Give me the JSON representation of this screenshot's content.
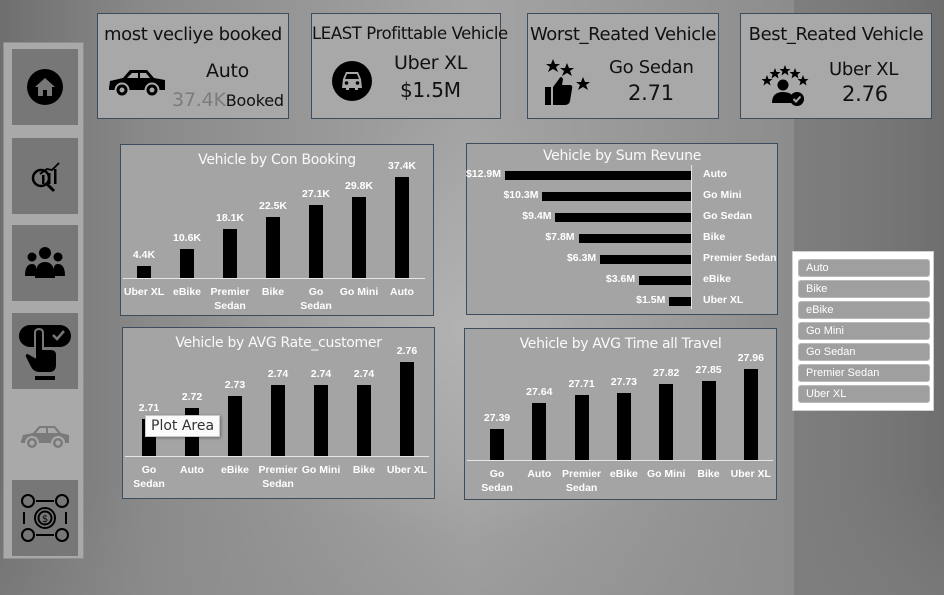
{
  "sidebar": {
    "items": [
      {
        "name": "home",
        "icon": "home-icon"
      },
      {
        "name": "analysis",
        "icon": "analytics-search-icon"
      },
      {
        "name": "customers",
        "icon": "users-group-icon"
      },
      {
        "name": "booking",
        "icon": "touch-select-icon"
      },
      {
        "name": "vehicles",
        "icon": "car-icon",
        "active": true
      },
      {
        "name": "payments",
        "icon": "payment-cycle-icon"
      }
    ]
  },
  "kpis": {
    "most_booked": {
      "title": "most vecliye booked",
      "name": "Auto",
      "value": "37.4K",
      "suffix": "Booked",
      "icon": "car-icon"
    },
    "least_profitable": {
      "title": "LEAST Profittable Vehicle",
      "name": "Uber XL",
      "value": "$1.5M",
      "icon": "car-front-circle-icon"
    },
    "worst_rated": {
      "title": "Worst_Reated Vehicle",
      "name": "Go Sedan",
      "value": "2.71",
      "icon": "thumbs-up-stars-icon"
    },
    "best_rated": {
      "title": "Best_Reated Vehicle",
      "name": "Uber XL",
      "value": "2.76",
      "icon": "user-rating-icon"
    }
  },
  "slicer": {
    "items": [
      "Auto",
      "Bike",
      "eBike",
      "Go Mini",
      "Go Sedan",
      "Premier Sedan",
      "Uber XL"
    ]
  },
  "tooltip": {
    "text": "Plot Area"
  },
  "chart_data": [
    {
      "type": "bar",
      "title": "Vehicle by Con Booking",
      "categories": [
        "Uber XL",
        "eBike",
        "Premier Sedan",
        "Bike",
        "Go Sedan",
        "Go Mini",
        "Auto"
      ],
      "category_lines": [
        [
          "Uber XL"
        ],
        [
          "eBike"
        ],
        [
          "Premier",
          "Sedan"
        ],
        [
          "Bike"
        ],
        [
          "Go",
          "Sedan"
        ],
        [
          "Go Mini"
        ],
        [
          "Auto"
        ]
      ],
      "values": [
        4400,
        10600,
        18100,
        22500,
        27100,
        29800,
        37400
      ],
      "labels": [
        "4.4K",
        "10.6K",
        "18.1K",
        "22.5K",
        "27.1K",
        "29.8K",
        "37.4K"
      ],
      "xlabel": "",
      "ylabel": "",
      "grid": false,
      "legend": "none"
    },
    {
      "type": "bar",
      "orientation": "horizontal",
      "title": "Vehicle by Sum Revune",
      "categories": [
        "Auto",
        "Go Mini",
        "Go Sedan",
        "Bike",
        "Premier Sedan",
        "eBike",
        "Uber XL"
      ],
      "values": [
        12.9,
        10.3,
        9.4,
        7.8,
        6.3,
        3.6,
        1.5
      ],
      "labels": [
        "$12.9M",
        "$10.3M",
        "$9.4M",
        "$7.8M",
        "$6.3M",
        "$3.6M",
        "$1.5M"
      ],
      "unit": "$M",
      "grid": false,
      "legend": "none"
    },
    {
      "type": "bar",
      "title": "Vehicle by AVG Rate_customer",
      "categories": [
        "Go Sedan",
        "Auto",
        "eBike",
        "Premier Sedan",
        "Go Mini",
        "Bike",
        "Uber XL"
      ],
      "category_lines": [
        [
          "Go",
          "Sedan"
        ],
        [
          "Auto"
        ],
        [
          "eBike"
        ],
        [
          "Premier",
          "Sedan"
        ],
        [
          "Go Mini"
        ],
        [
          "Bike"
        ],
        [
          "Uber XL"
        ]
      ],
      "values": [
        2.71,
        2.72,
        2.73,
        2.74,
        2.74,
        2.74,
        2.76
      ],
      "labels": [
        "2.71",
        "2.72",
        "2.73",
        "2.74",
        "2.74",
        "2.74",
        "2.76"
      ],
      "grid": false,
      "legend": "none"
    },
    {
      "type": "bar",
      "title": "Vehicle by AVG Time all Travel",
      "categories": [
        "Go Sedan",
        "Auto",
        "Premier Sedan",
        "eBike",
        "Go Mini",
        "Bike",
        "Uber XL"
      ],
      "category_lines": [
        [
          "Go",
          "Sedan"
        ],
        [
          "Auto"
        ],
        [
          "Premier",
          "Sedan"
        ],
        [
          "eBike"
        ],
        [
          "Go Mini"
        ],
        [
          "Bike"
        ],
        [
          "Uber XL"
        ]
      ],
      "values": [
        27.39,
        27.64,
        27.71,
        27.73,
        27.82,
        27.85,
        27.96
      ],
      "labels": [
        "27.39",
        "27.64",
        "27.71",
        "27.73",
        "27.82",
        "27.85",
        "27.96"
      ],
      "grid": false,
      "legend": "none"
    }
  ],
  "colors": {
    "bar": "#000000",
    "card_bg": "#a8a8a8",
    "card_border": "#3c4e5e",
    "label": "#ffffff"
  }
}
